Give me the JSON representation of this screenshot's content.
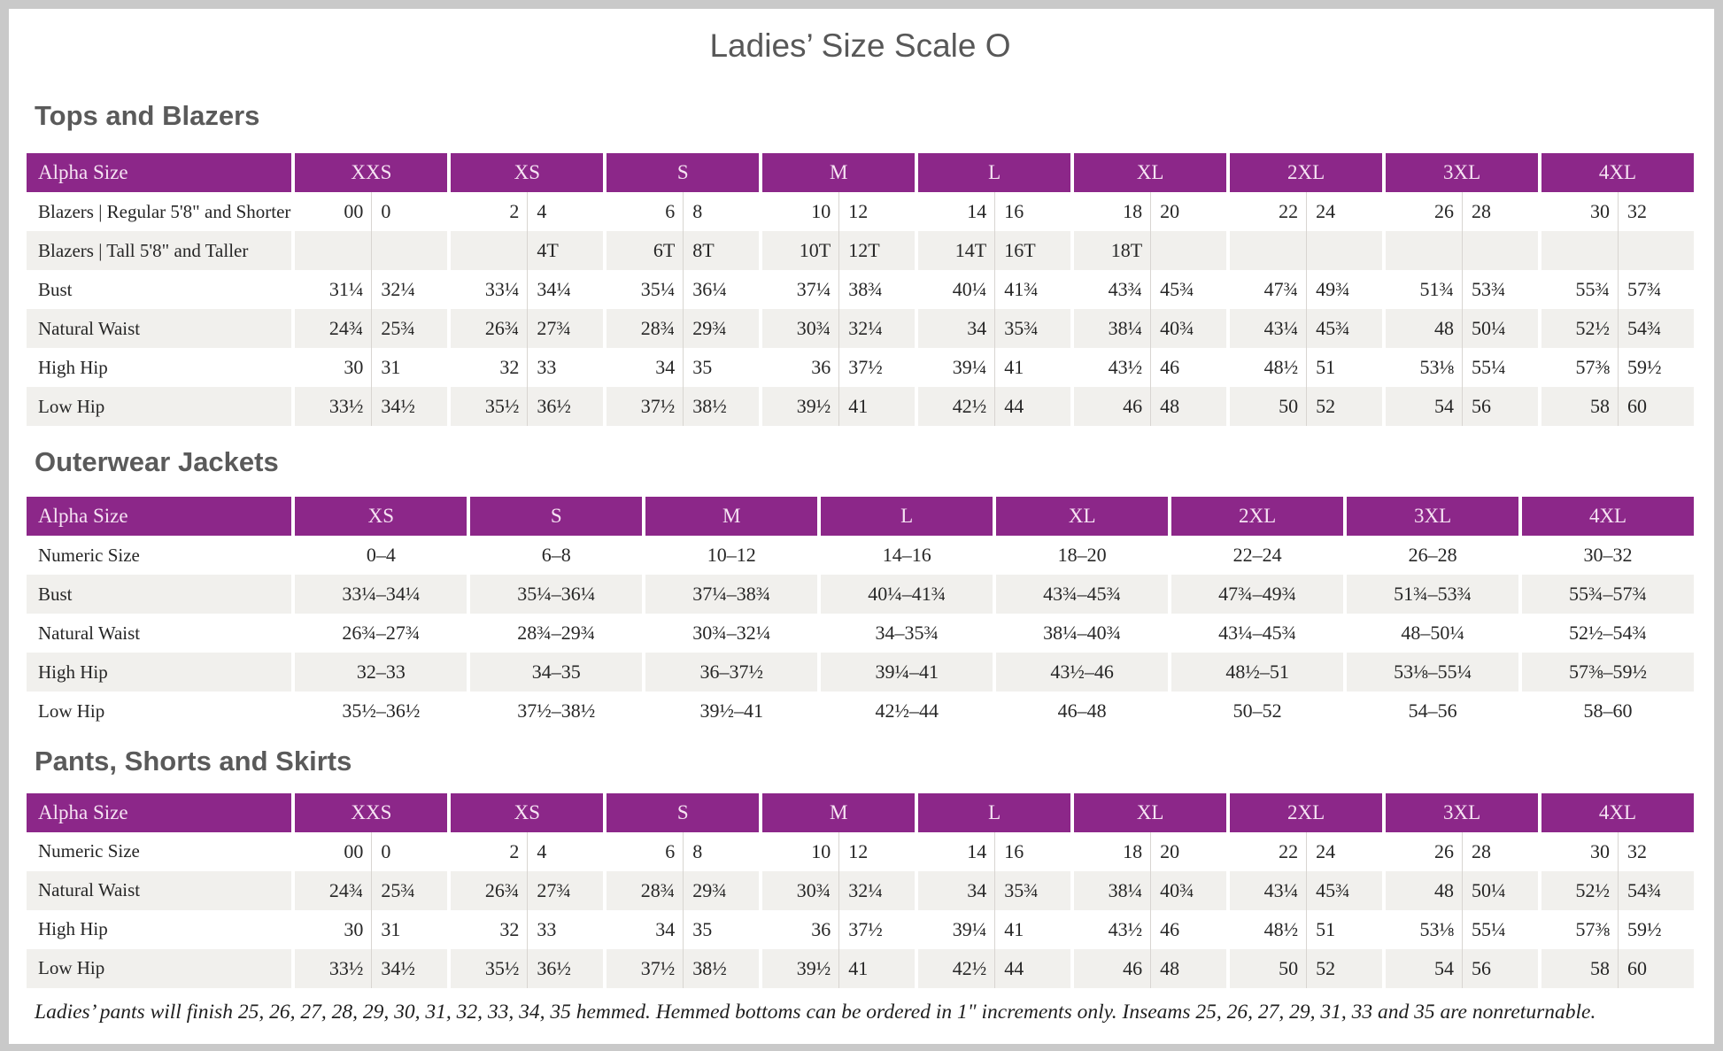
{
  "page_title": "Ladies’ Size Scale O",
  "colors": {
    "header_purple": "#8c2789",
    "header_text": "#f6e3f3",
    "row_stripe": "#f1f0ed",
    "heading_gray": "#5a5a5a",
    "body_text": "#262626"
  },
  "tables": [
    {
      "id": "tops-and-blazers",
      "section_title": "Tops and Blazers",
      "corner_label": "Alpha Size",
      "layout": "paired",
      "alpha_sizes": [
        "XXS",
        "XS",
        "S",
        "M",
        "L",
        "XL",
        "2XL",
        "3XL",
        "4XL"
      ],
      "rows": [
        {
          "label": "Blazers | Regular 5'8\" and Shorter",
          "values": [
            [
              "00",
              "0"
            ],
            [
              "2",
              "4"
            ],
            [
              "6",
              "8"
            ],
            [
              "10",
              "12"
            ],
            [
              "14",
              "16"
            ],
            [
              "18",
              "20"
            ],
            [
              "22",
              "24"
            ],
            [
              "26",
              "28"
            ],
            [
              "30",
              "32"
            ]
          ]
        },
        {
          "label": "Blazers | Tall 5'8\" and Taller",
          "values": [
            [
              "",
              ""
            ],
            [
              "",
              "4T"
            ],
            [
              "6T",
              "8T"
            ],
            [
              "10T",
              "12T"
            ],
            [
              "14T",
              "16T"
            ],
            [
              "18T",
              ""
            ],
            [
              "",
              ""
            ],
            [
              "",
              ""
            ],
            [
              "",
              ""
            ]
          ]
        },
        {
          "label": "Bust",
          "values": [
            [
              "31¼",
              "32¼"
            ],
            [
              "33¼",
              "34¼"
            ],
            [
              "35¼",
              "36¼"
            ],
            [
              "37¼",
              "38¾"
            ],
            [
              "40¼",
              "41¾"
            ],
            [
              "43¾",
              "45¾"
            ],
            [
              "47¾",
              "49¾"
            ],
            [
              "51¾",
              "53¾"
            ],
            [
              "55¾",
              "57¾"
            ]
          ]
        },
        {
          "label": "Natural Waist",
          "values": [
            [
              "24¾",
              "25¾"
            ],
            [
              "26¾",
              "27¾"
            ],
            [
              "28¾",
              "29¾"
            ],
            [
              "30¾",
              "32¼"
            ],
            [
              "34",
              "35¾"
            ],
            [
              "38¼",
              "40¾"
            ],
            [
              "43¼",
              "45¾"
            ],
            [
              "48",
              "50¼"
            ],
            [
              "52½",
              "54¾"
            ]
          ]
        },
        {
          "label": "High Hip",
          "values": [
            [
              "30",
              "31"
            ],
            [
              "32",
              "33"
            ],
            [
              "34",
              "35"
            ],
            [
              "36",
              "37½"
            ],
            [
              "39¼",
              "41"
            ],
            [
              "43½",
              "46"
            ],
            [
              "48½",
              "51"
            ],
            [
              "53⅛",
              "55¼"
            ],
            [
              "57⅜",
              "59½"
            ]
          ]
        },
        {
          "label": "Low Hip",
          "values": [
            [
              "33½",
              "34½"
            ],
            [
              "35½",
              "36½"
            ],
            [
              "37½",
              "38½"
            ],
            [
              "39½",
              "41"
            ],
            [
              "42½",
              "44"
            ],
            [
              "46",
              "48"
            ],
            [
              "50",
              "52"
            ],
            [
              "54",
              "56"
            ],
            [
              "58",
              "60"
            ]
          ]
        }
      ]
    },
    {
      "id": "outerwear-jackets",
      "section_title": "Outerwear Jackets",
      "corner_label": "Alpha Size",
      "layout": "single",
      "alpha_sizes": [
        "XS",
        "S",
        "M",
        "L",
        "XL",
        "2XL",
        "3XL",
        "4XL"
      ],
      "rows": [
        {
          "label": "Numeric Size",
          "values": [
            "0–4",
            "6–8",
            "10–12",
            "14–16",
            "18–20",
            "22–24",
            "26–28",
            "30–32"
          ]
        },
        {
          "label": "Bust",
          "values": [
            "33¼–34¼",
            "35¼–36¼",
            "37¼–38¾",
            "40¼–41¾",
            "43¾–45¾",
            "47¾–49¾",
            "51¾–53¾",
            "55¾–57¾"
          ]
        },
        {
          "label": "Natural Waist",
          "values": [
            "26¾–27¾",
            "28¾–29¾",
            "30¾–32¼",
            "34–35¾",
            "38¼–40¾",
            "43¼–45¾",
            "48–50¼",
            "52½–54¾"
          ]
        },
        {
          "label": "High Hip",
          "values": [
            "32–33",
            "34–35",
            "36–37½",
            "39¼–41",
            "43½–46",
            "48½–51",
            "53⅛–55¼",
            "57⅜–59½"
          ]
        },
        {
          "label": "Low Hip",
          "values": [
            "35½–36½",
            "37½–38½",
            "39½–41",
            "42½–44",
            "46–48",
            "50–52",
            "54–56",
            "58–60"
          ]
        }
      ]
    },
    {
      "id": "pants-shorts-and-skirts",
      "section_title": "Pants, Shorts and Skirts",
      "corner_label": "Alpha Size",
      "layout": "paired",
      "alpha_sizes": [
        "XXS",
        "XS",
        "S",
        "M",
        "L",
        "XL",
        "2XL",
        "3XL",
        "4XL"
      ],
      "rows": [
        {
          "label": "Numeric Size",
          "values": [
            [
              "00",
              "0"
            ],
            [
              "2",
              "4"
            ],
            [
              "6",
              "8"
            ],
            [
              "10",
              "12"
            ],
            [
              "14",
              "16"
            ],
            [
              "18",
              "20"
            ],
            [
              "22",
              "24"
            ],
            [
              "26",
              "28"
            ],
            [
              "30",
              "32"
            ]
          ]
        },
        {
          "label": "Natural Waist",
          "values": [
            [
              "24¾",
              "25¾"
            ],
            [
              "26¾",
              "27¾"
            ],
            [
              "28¾",
              "29¾"
            ],
            [
              "30¾",
              "32¼"
            ],
            [
              "34",
              "35¾"
            ],
            [
              "38¼",
              "40¾"
            ],
            [
              "43¼",
              "45¾"
            ],
            [
              "48",
              "50¼"
            ],
            [
              "52½",
              "54¾"
            ]
          ]
        },
        {
          "label": "High Hip",
          "values": [
            [
              "30",
              "31"
            ],
            [
              "32",
              "33"
            ],
            [
              "34",
              "35"
            ],
            [
              "36",
              "37½"
            ],
            [
              "39¼",
              "41"
            ],
            [
              "43½",
              "46"
            ],
            [
              "48½",
              "51"
            ],
            [
              "53⅛",
              "55¼"
            ],
            [
              "57⅜",
              "59½"
            ]
          ]
        },
        {
          "label": "Low Hip",
          "values": [
            [
              "33½",
              "34½"
            ],
            [
              "35½",
              "36½"
            ],
            [
              "37½",
              "38½"
            ],
            [
              "39½",
              "41"
            ],
            [
              "42½",
              "44"
            ],
            [
              "46",
              "48"
            ],
            [
              "50",
              "52"
            ],
            [
              "54",
              "56"
            ],
            [
              "58",
              "60"
            ]
          ]
        }
      ]
    }
  ],
  "footnote": "Ladies’ pants will finish 25, 26, 27, 28, 29, 30, 31, 32, 33, 34, 35 hemmed. Hemmed bottoms can be ordered in 1\" increments only. Inseams 25, 26, 27, 29, 31, 33 and 35 are nonreturnable."
}
